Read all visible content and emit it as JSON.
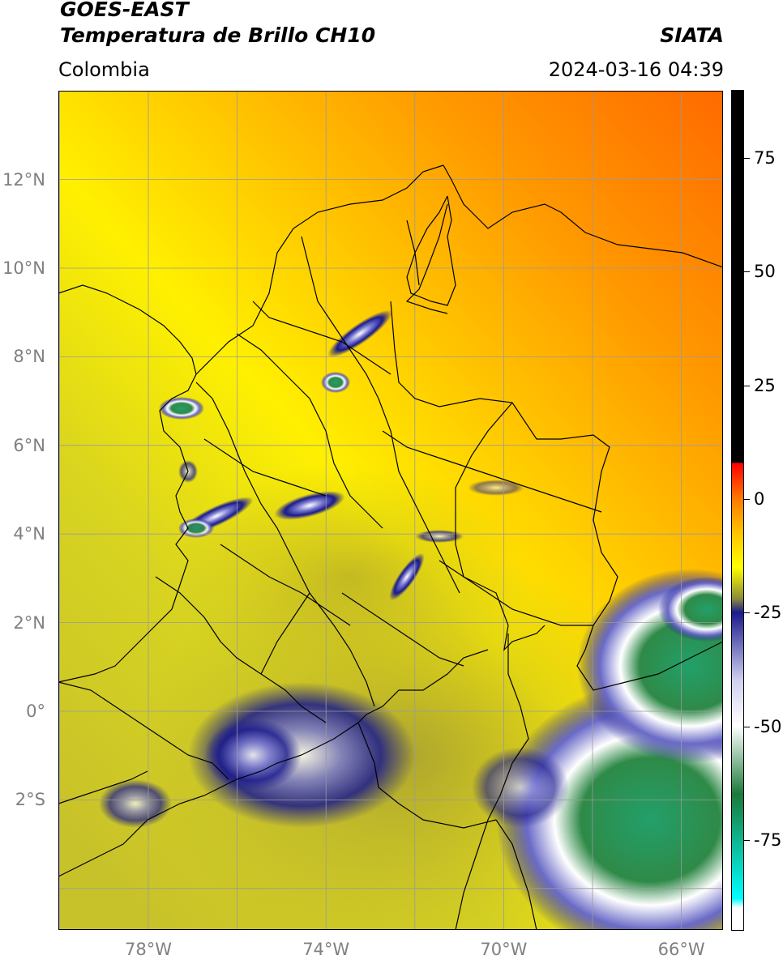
{
  "header": {
    "satellite": "GOES-EAST",
    "product": "Temperatura de Brillo CH10",
    "region": "Colombia",
    "organization": "SIATA",
    "timestamp": "2024-03-16 04:39"
  },
  "map": {
    "lon_range": [
      -80,
      -65
    ],
    "lat_range": [
      -5,
      14
    ],
    "lat_ticks": [
      {
        "value": 12,
        "label": "12°N"
      },
      {
        "value": 10,
        "label": "10°N"
      },
      {
        "value": 8,
        "label": "8°N"
      },
      {
        "value": 6,
        "label": "6°N"
      },
      {
        "value": 4,
        "label": "4°N"
      },
      {
        "value": 2,
        "label": "2°N"
      },
      {
        "value": 0,
        "label": "0°"
      },
      {
        "value": -2,
        "label": "2°S"
      }
    ],
    "lon_ticks": [
      {
        "value": -78,
        "label": "78°W"
      },
      {
        "value": -74,
        "label": "74°W"
      },
      {
        "value": -70,
        "label": "70°W"
      },
      {
        "value": -66,
        "label": "66°W"
      }
    ],
    "grid": true
  },
  "colorbar": {
    "range": [
      -95,
      90
    ],
    "ticks": [
      {
        "value": 75,
        "label": "75"
      },
      {
        "value": 50,
        "label": "50"
      },
      {
        "value": 25,
        "label": "25"
      },
      {
        "value": 0,
        "label": "0"
      },
      {
        "value": -25,
        "label": "-25"
      },
      {
        "value": -50,
        "label": "-50"
      },
      {
        "value": -75,
        "label": "-75"
      }
    ],
    "stops": [
      {
        "value": 90,
        "color": "#000000"
      },
      {
        "value": 8,
        "color": "#000000"
      },
      {
        "value": 7.9,
        "color": "#ff0000"
      },
      {
        "value": 0,
        "color": "#ff7a00"
      },
      {
        "value": -8,
        "color": "#ffc800"
      },
      {
        "value": -15,
        "color": "#ffff00"
      },
      {
        "value": -22,
        "color": "#8a8a3a"
      },
      {
        "value": -25,
        "color": "#1a1a8c"
      },
      {
        "value": -40,
        "color": "#d0d0f0"
      },
      {
        "value": -50,
        "color": "#ffffff"
      },
      {
        "value": -65,
        "color": "#1a7a3a"
      },
      {
        "value": -88,
        "color": "#00ffff"
      },
      {
        "value": -90,
        "color": "#ffffff"
      },
      {
        "value": -95,
        "color": "#ffffff"
      }
    ]
  }
}
